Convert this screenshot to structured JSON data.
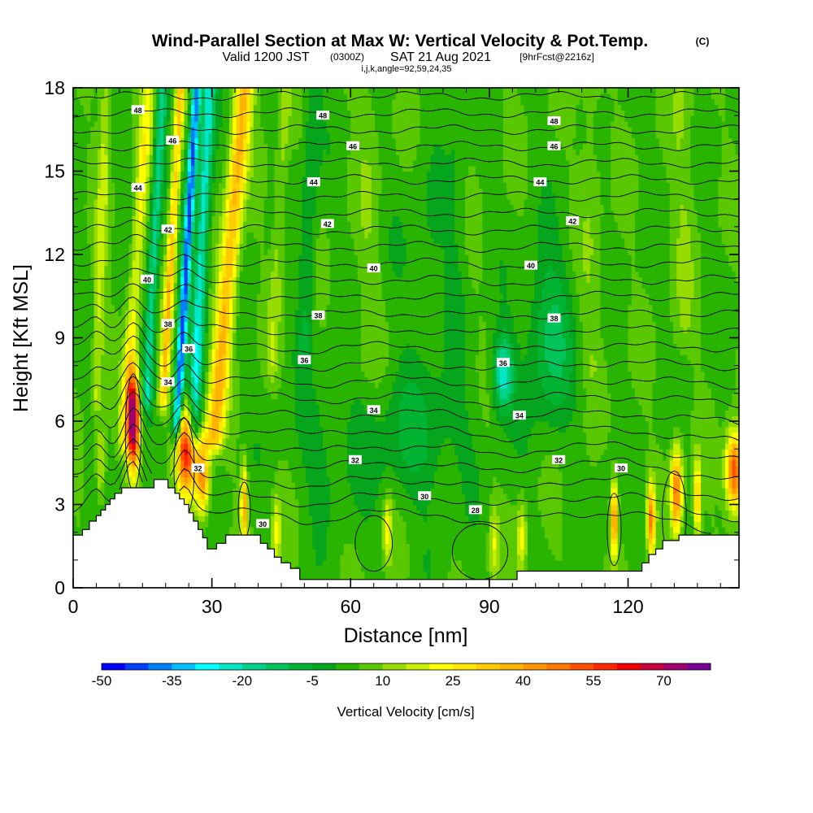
{
  "header": {
    "title_main": "Wind-Parallel Section at Max W: Vertical Velocity & Pot.Temp.",
    "title_mark": "(C)",
    "valid_a": "Valid 1200 JST",
    "valid_b": "(0300Z)",
    "valid_c": "SAT 21 Aug 2021",
    "valid_d": "[9hrFcst@2216z]",
    "indices": "i,j,k,angle=92,59,24,35"
  },
  "chart_data": {
    "type": "heatmap",
    "title": "Wind-Parallel Section at Max W: Vertical Velocity & Pot.Temp.",
    "xlabel": "Distance [nm]",
    "ylabel": "Height [Kft MSL]",
    "xlim": [
      0,
      144
    ],
    "ylim": [
      0,
      18
    ],
    "x_ticks": [
      0,
      30,
      60,
      90,
      120
    ],
    "y_ticks": [
      0,
      3,
      6,
      9,
      12,
      15,
      18
    ],
    "grid": false,
    "shaded_field": "Vertical Velocity [cm/s]",
    "contour_field": "Potential temperature",
    "colorbar": {
      "label": "Vertical Velocity [cm/s]",
      "tick_labels": [
        "-50",
        "-35",
        "-20",
        "-5",
        "10",
        "25",
        "40",
        "55",
        "70"
      ],
      "levels": [
        -50,
        -45,
        -40,
        -35,
        -30,
        -25,
        -20,
        -15,
        -10,
        -5,
        0,
        5,
        10,
        15,
        20,
        25,
        30,
        35,
        40,
        45,
        50,
        55,
        60,
        65,
        70,
        75
      ],
      "colors": [
        "#0000ff",
        "#0040ff",
        "#0080ff",
        "#00bfff",
        "#00ffff",
        "#00e6c8",
        "#00d28c",
        "#00c35a",
        "#00b432",
        "#05a51e",
        "#28b400",
        "#5ac800",
        "#96dc00",
        "#c8f000",
        "#ffff00",
        "#ffe600",
        "#ffcc00",
        "#ffb400",
        "#ff9600",
        "#ff7800",
        "#ff5000",
        "#ff2800",
        "#f00000",
        "#c8003c",
        "#a0006e",
        "#780096"
      ]
    },
    "terrain": [
      [
        0,
        1.9
      ],
      [
        2,
        1.9
      ],
      [
        2,
        2.1
      ],
      [
        3.5,
        2.1
      ],
      [
        3.5,
        2.4
      ],
      [
        5,
        2.4
      ],
      [
        5,
        2.6
      ],
      [
        6,
        2.6
      ],
      [
        6,
        2.8
      ],
      [
        7,
        2.8
      ],
      [
        7,
        3.0
      ],
      [
        8,
        3.0
      ],
      [
        8,
        3.2
      ],
      [
        9,
        3.2
      ],
      [
        9,
        3.4
      ],
      [
        10.5,
        3.4
      ],
      [
        10.5,
        3.6
      ],
      [
        17.5,
        3.6
      ],
      [
        17.5,
        3.9
      ],
      [
        20.5,
        3.9
      ],
      [
        20.5,
        3.6
      ],
      [
        22,
        3.6
      ],
      [
        22,
        3.4
      ],
      [
        23,
        3.4
      ],
      [
        23,
        3.2
      ],
      [
        24,
        3.2
      ],
      [
        24,
        3.0
      ],
      [
        25,
        3.0
      ],
      [
        25,
        2.7
      ],
      [
        26,
        2.7
      ],
      [
        26,
        2.4
      ],
      [
        27,
        2.4
      ],
      [
        27,
        2.1
      ],
      [
        28,
        2.1
      ],
      [
        28,
        1.8
      ],
      [
        29,
        1.8
      ],
      [
        29,
        1.4
      ],
      [
        31,
        1.4
      ],
      [
        31,
        1.6
      ],
      [
        33,
        1.6
      ],
      [
        33,
        1.9
      ],
      [
        40.5,
        1.9
      ],
      [
        40.5,
        1.6
      ],
      [
        42,
        1.6
      ],
      [
        42,
        1.4
      ],
      [
        43.5,
        1.4
      ],
      [
        43.5,
        1.1
      ],
      [
        45,
        1.1
      ],
      [
        45,
        0.9
      ],
      [
        47,
        0.9
      ],
      [
        47,
        0.7
      ],
      [
        49,
        0.7
      ],
      [
        49,
        0.3
      ],
      [
        96,
        0.3
      ],
      [
        96,
        0.6
      ],
      [
        123,
        0.6
      ],
      [
        123,
        0.9
      ],
      [
        124.5,
        0.9
      ],
      [
        124.5,
        1.2
      ],
      [
        126,
        1.2
      ],
      [
        126,
        1.4
      ],
      [
        127.5,
        1.4
      ],
      [
        127.5,
        1.7
      ],
      [
        131,
        1.7
      ],
      [
        131,
        1.9
      ],
      [
        144,
        1.9
      ]
    ],
    "theta_contour_levels": [
      28,
      30,
      32,
      34,
      36,
      38,
      40,
      42,
      44,
      46,
      48
    ],
    "isotherm_labels": [
      {
        "text": "48",
        "x": 14,
        "y": 17.2
      },
      {
        "text": "48",
        "x": 54,
        "y": 17.0
      },
      {
        "text": "48",
        "x": 104,
        "y": 16.8
      },
      {
        "text": "46",
        "x": 21.5,
        "y": 16.1
      },
      {
        "text": "46",
        "x": 60.5,
        "y": 15.9
      },
      {
        "text": "46",
        "x": 104,
        "y": 15.9
      },
      {
        "text": "44",
        "x": 14,
        "y": 14.4
      },
      {
        "text": "44",
        "x": 52,
        "y": 14.6
      },
      {
        "text": "44",
        "x": 101,
        "y": 14.6
      },
      {
        "text": "42",
        "x": 20.5,
        "y": 12.9
      },
      {
        "text": "42",
        "x": 55,
        "y": 13.1
      },
      {
        "text": "42",
        "x": 108,
        "y": 13.2
      },
      {
        "text": "40",
        "x": 16,
        "y": 11.1
      },
      {
        "text": "40",
        "x": 65,
        "y": 11.5
      },
      {
        "text": "40",
        "x": 99,
        "y": 11.6
      },
      {
        "text": "38",
        "x": 20.5,
        "y": 9.5
      },
      {
        "text": "38",
        "x": 53,
        "y": 9.8
      },
      {
        "text": "38",
        "x": 104,
        "y": 9.7
      },
      {
        "text": "36",
        "x": 25,
        "y": 8.6
      },
      {
        "text": "36",
        "x": 50,
        "y": 8.2
      },
      {
        "text": "36",
        "x": 93,
        "y": 8.1
      },
      {
        "text": "34",
        "x": 20.5,
        "y": 7.4
      },
      {
        "text": "34",
        "x": 65,
        "y": 6.4
      },
      {
        "text": "34",
        "x": 96.5,
        "y": 6.2
      },
      {
        "text": "32",
        "x": 27,
        "y": 4.3
      },
      {
        "text": "32",
        "x": 61,
        "y": 4.6
      },
      {
        "text": "32",
        "x": 105,
        "y": 4.6
      },
      {
        "text": "30",
        "x": 41,
        "y": 2.3
      },
      {
        "text": "30",
        "x": 76,
        "y": 3.3
      },
      {
        "text": "30",
        "x": 118.5,
        "y": 4.3
      },
      {
        "text": "28",
        "x": 87,
        "y": 2.8
      }
    ]
  }
}
